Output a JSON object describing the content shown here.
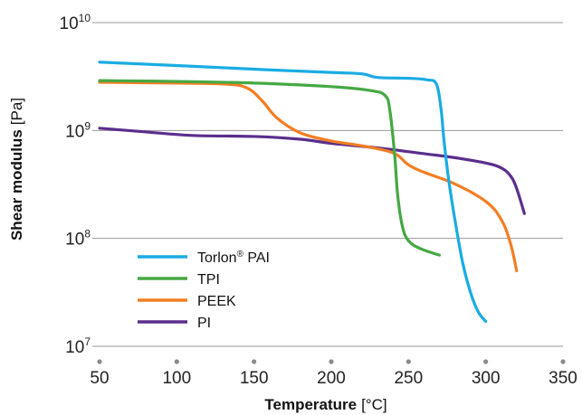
{
  "chart_data": {
    "type": "line",
    "xlabel": {
      "bold": "Temperature",
      "unit": "[°C]"
    },
    "ylabel": {
      "bold": "Shear modulus",
      "unit": "[Pa]"
    },
    "xlim": [
      50,
      350
    ],
    "ylim": [
      10000000,
      10000000000
    ],
    "yscale": "log",
    "x_ticks": [
      "50",
      "100",
      "150",
      "200",
      "250",
      "300",
      "350"
    ],
    "y_ticks": [
      {
        "base": "10",
        "exp": "10",
        "value": 10000000000
      },
      {
        "base": "10",
        "exp": "9",
        "value": 1000000000
      },
      {
        "base": "10",
        "exp": "8",
        "value": 100000000
      },
      {
        "base": "10",
        "exp": "7",
        "value": 10000000
      }
    ],
    "grid": "horizontal",
    "legend_position": "bottom-left",
    "series": [
      {
        "name": "Torlon",
        "name_sup": "®",
        "name_suffix": " PAI",
        "color": "#1aace3",
        "points": [
          [
            50,
            4300000000.0
          ],
          [
            100,
            4000000000.0
          ],
          [
            150,
            3700000000.0
          ],
          [
            200,
            3450000000.0
          ],
          [
            220,
            3350000000.0
          ],
          [
            230,
            3100000000.0
          ],
          [
            250,
            3050000000.0
          ],
          [
            262,
            2950000000.0
          ],
          [
            268,
            2700000000.0
          ],
          [
            271,
            1600000000.0
          ],
          [
            273,
            800000000.0
          ],
          [
            276,
            350000000.0
          ],
          [
            280,
            150000000.0
          ],
          [
            285,
            60000000.0
          ],
          [
            290,
            32000000.0
          ],
          [
            295,
            21000000.0
          ],
          [
            300,
            17000000.0
          ]
        ]
      },
      {
        "name": "TPI",
        "color": "#45a843",
        "points": [
          [
            50,
            2900000000.0
          ],
          [
            100,
            2850000000.0
          ],
          [
            150,
            2750000000.0
          ],
          [
            200,
            2550000000.0
          ],
          [
            225,
            2350000000.0
          ],
          [
            235,
            2100000000.0
          ],
          [
            238,
            1500000000.0
          ],
          [
            241,
            600000000.0
          ],
          [
            243,
            250000000.0
          ],
          [
            246,
            130000000.0
          ],
          [
            250,
            95000000.0
          ],
          [
            258,
            80000000.0
          ],
          [
            270,
            70000000.0
          ]
        ]
      },
      {
        "name": "PEEK",
        "color": "#f37e22",
        "points": [
          [
            50,
            2800000000.0
          ],
          [
            100,
            2750000000.0
          ],
          [
            130,
            2700000000.0
          ],
          [
            145,
            2500000000.0
          ],
          [
            155,
            1900000000.0
          ],
          [
            165,
            1300000000.0
          ],
          [
            180,
            950000000.0
          ],
          [
            200,
            800000000.0
          ],
          [
            220,
            720000000.0
          ],
          [
            240,
            620000000.0
          ],
          [
            250,
            480000000.0
          ],
          [
            260,
            410000000.0
          ],
          [
            280,
            320000000.0
          ],
          [
            300,
            220000000.0
          ],
          [
            310,
            150000000.0
          ],
          [
            316,
            90000000.0
          ],
          [
            320,
            50000000.0
          ]
        ]
      },
      {
        "name": "PI",
        "color": "#5a2e8c",
        "points": [
          [
            50,
            1050000000.0
          ],
          [
            80,
            970000000.0
          ],
          [
            110,
            900000000.0
          ],
          [
            150,
            880000000.0
          ],
          [
            180,
            830000000.0
          ],
          [
            200,
            760000000.0
          ],
          [
            230,
            690000000.0
          ],
          [
            260,
            610000000.0
          ],
          [
            280,
            560000000.0
          ],
          [
            300,
            500000000.0
          ],
          [
            310,
            450000000.0
          ],
          [
            316,
            380000000.0
          ],
          [
            320,
            290000000.0
          ],
          [
            325,
            170000000.0
          ]
        ]
      }
    ]
  }
}
